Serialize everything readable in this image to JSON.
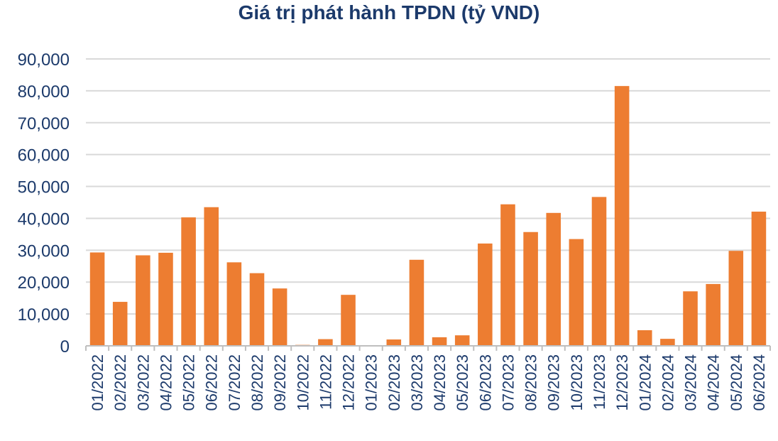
{
  "chart_data": {
    "type": "bar",
    "title": "Giá trị phát hành TPDN (tỷ VND)",
    "xlabel": "",
    "ylabel": "",
    "ylim": [
      0,
      90000
    ],
    "yticks": [
      0,
      10000,
      20000,
      30000,
      40000,
      50000,
      60000,
      70000,
      80000,
      90000
    ],
    "ytick_labels": [
      "0",
      "10,000",
      "20,000",
      "30,000",
      "40,000",
      "50,000",
      "60,000",
      "70,000",
      "80,000",
      "90,000"
    ],
    "grid": true,
    "legend": "none",
    "bar_color": "#ed7d31",
    "text_color": "#1c3a6b",
    "grid_color": "#d9d9d9",
    "categories": [
      "01/2022",
      "02/2022",
      "03/2022",
      "04/2022",
      "05/2022",
      "06/2022",
      "07/2022",
      "08/2022",
      "09/2022",
      "10/2022",
      "11/2022",
      "12/2022",
      "01/2023",
      "02/2023",
      "03/2023",
      "04/2023",
      "05/2023",
      "06/2023",
      "07/2023",
      "08/2023",
      "09/2023",
      "10/2023",
      "11/2023",
      "12/2023",
      "01/2024",
      "02/2024",
      "03/2024",
      "04/2024",
      "05/2024",
      "06/2024"
    ],
    "values": [
      29300,
      13800,
      28400,
      29200,
      40300,
      43500,
      26200,
      22800,
      18000,
      300,
      2100,
      16000,
      0,
      2000,
      27000,
      2700,
      3300,
      32100,
      44400,
      35700,
      41700,
      33500,
      46700,
      81500,
      4900,
      2200,
      17100,
      19400,
      29800,
      42100
    ]
  }
}
